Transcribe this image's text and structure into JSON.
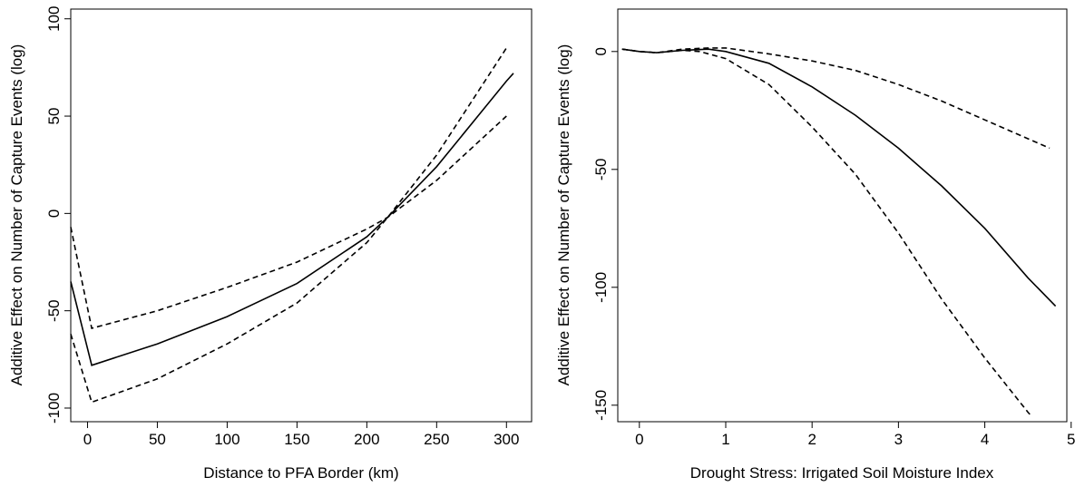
{
  "chart_data": [
    {
      "type": "line",
      "xlabel": "Distance to PFA Border (km)",
      "ylabel": "Additive Effect on Number of Capture Events (log)",
      "xlim": [
        -12,
        318
      ],
      "ylim": [
        -107,
        105
      ],
      "xticks": [
        0,
        50,
        100,
        150,
        200,
        250,
        300
      ],
      "yticks": [
        -100,
        -50,
        0,
        50,
        100
      ],
      "grid": false,
      "series": [
        {
          "style": "solid",
          "points": [
            [
              -12,
              -35
            ],
            [
              3,
              -78
            ],
            [
              50,
              -67
            ],
            [
              100,
              -53
            ],
            [
              150,
              -36
            ],
            [
              200,
              -12
            ],
            [
              215,
              -2
            ],
            [
              250,
              24
            ],
            [
              300,
              68
            ],
            [
              305,
              72
            ]
          ]
        },
        {
          "style": "dashed",
          "points": [
            [
              -12,
              -7
            ],
            [
              3,
              -59
            ],
            [
              50,
              -50
            ],
            [
              100,
              -38
            ],
            [
              150,
              -25
            ],
            [
              200,
              -8
            ],
            [
              215,
              -2
            ],
            [
              250,
              17
            ],
            [
              300,
              50
            ]
          ]
        },
        {
          "style": "dashed",
          "points": [
            [
              -12,
              -62
            ],
            [
              3,
              -97
            ],
            [
              50,
              -85
            ],
            [
              100,
              -67
            ],
            [
              150,
              -46
            ],
            [
              200,
              -15
            ],
            [
              215,
              -2
            ],
            [
              250,
              30
            ],
            [
              300,
              85
            ]
          ]
        }
      ]
    },
    {
      "type": "line",
      "xlabel": "Drought Stress: Irrigated Soil Moisture Index",
      "ylabel": "Additive Effect on Number of Capture Events (log)",
      "xlim": [
        -0.25,
        4.95
      ],
      "ylim": [
        -157,
        18
      ],
      "xticks": [
        0,
        1,
        2,
        3,
        4,
        5
      ],
      "yticks": [
        -150,
        -100,
        -50,
        0
      ],
      "grid": false,
      "series": [
        {
          "style": "solid",
          "points": [
            [
              -0.2,
              1
            ],
            [
              0,
              0
            ],
            [
              0.2,
              -0.5
            ],
            [
              0.5,
              0.5
            ],
            [
              0.8,
              1
            ],
            [
              1.0,
              0
            ],
            [
              1.5,
              -5
            ],
            [
              2.0,
              -15
            ],
            [
              2.5,
              -27
            ],
            [
              3.0,
              -41
            ],
            [
              3.5,
              -57
            ],
            [
              4.0,
              -75
            ],
            [
              4.5,
              -96
            ],
            [
              4.82,
              -108
            ]
          ]
        },
        {
          "style": "dashed",
          "points": [
            [
              -0.2,
              1
            ],
            [
              0,
              0
            ],
            [
              0.2,
              -0.5
            ],
            [
              0.5,
              1
            ],
            [
              0.8,
              1.5
            ],
            [
              1.0,
              1.5
            ],
            [
              1.5,
              -1
            ],
            [
              2.0,
              -4
            ],
            [
              2.5,
              -8
            ],
            [
              3.0,
              -14
            ],
            [
              3.5,
              -21
            ],
            [
              4.0,
              -29
            ],
            [
              4.5,
              -37
            ],
            [
              4.75,
              -41
            ]
          ]
        },
        {
          "style": "dashed",
          "points": [
            [
              -0.2,
              1
            ],
            [
              0,
              0
            ],
            [
              0.2,
              -0.5
            ],
            [
              0.5,
              0.5
            ],
            [
              0.7,
              0
            ],
            [
              1.0,
              -3
            ],
            [
              1.5,
              -14
            ],
            [
              2.0,
              -32
            ],
            [
              2.5,
              -52
            ],
            [
              3.0,
              -77
            ],
            [
              3.5,
              -105
            ],
            [
              4.0,
              -130
            ],
            [
              4.5,
              -153
            ],
            [
              4.55,
              -155
            ]
          ]
        }
      ]
    }
  ]
}
